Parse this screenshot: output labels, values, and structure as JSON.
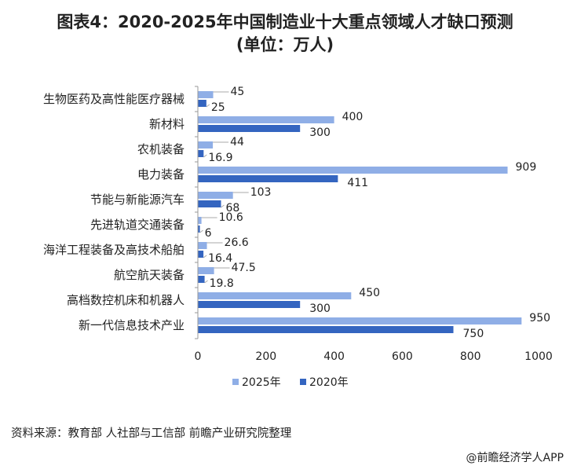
{
  "title_line1": "图表4：2020-2025年中国制造业十大重点领域人才缺口预测",
  "title_line2": "(单位：万人)",
  "source": "资料来源：教育部 人社部与工信部 前瞻产业研究院整理",
  "credit": "@前瞻经济学人APP",
  "colors": {
    "s2025": "#8faee6",
    "s2020": "#3465c0"
  },
  "chart_data": {
    "type": "bar",
    "orientation": "horizontal",
    "title": "图表4：2020-2025年中国制造业十大重点领域人才缺口预测(单位：万人)",
    "categories": [
      "生物医药及高性能医疗器械",
      "新材料",
      "农机装备",
      "电力装备",
      "节能与新能源汽车",
      "先进轨道交通装备",
      "海洋工程装备及高技术船舶",
      "航空航天装备",
      "高档数控机床和机器人",
      "新一代信息技术产业"
    ],
    "series": [
      {
        "name": "2025年",
        "values": [
          45,
          400,
          44,
          909,
          103,
          10.6,
          26.6,
          47.5,
          450,
          950
        ]
      },
      {
        "name": "2020年",
        "values": [
          25,
          300,
          16.9,
          411,
          68,
          6,
          16.4,
          19.8,
          300,
          750
        ]
      }
    ],
    "xlim": [
      0,
      1000
    ],
    "xticks": [
      0,
      200,
      400,
      600,
      800,
      1000
    ],
    "grid": false,
    "legend": "bottom-center"
  }
}
